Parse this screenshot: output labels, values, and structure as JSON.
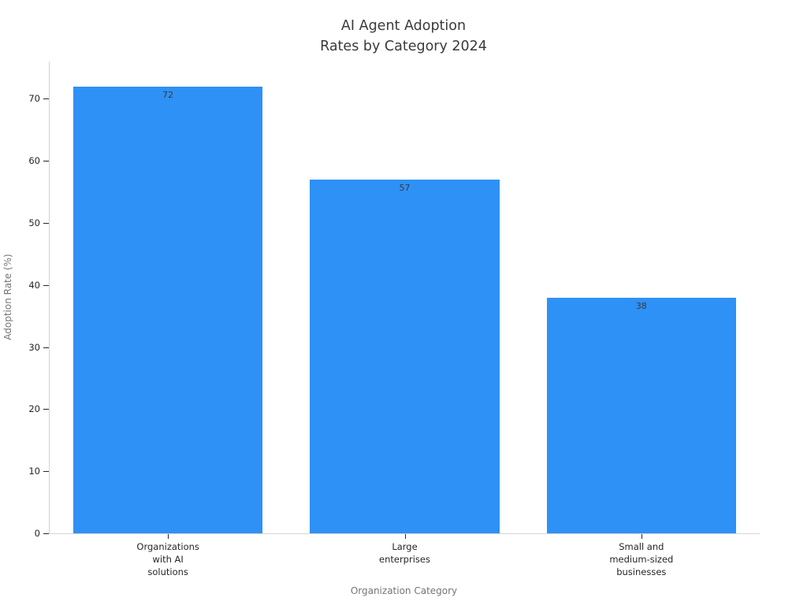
{
  "chart_data": {
    "type": "bar",
    "title": "AI Agent Adoption\nRates by Category 2024",
    "categories": [
      "Organizations\nwith AI\nsolutions",
      "Large\nenterprises",
      "Small and\nmedium-sized\nbusinesses"
    ],
    "values": [
      72,
      57,
      38
    ],
    "bar_labels": [
      "72",
      "57",
      "38"
    ],
    "xlabel": "Organization Category",
    "ylabel": "Adoption Rate (%)",
    "ylim": [
      0,
      76
    ],
    "yticks": [
      0,
      10,
      20,
      30,
      40,
      50,
      60,
      70
    ],
    "bar_width_fraction": 0.8,
    "grid": false,
    "legend_position": "none",
    "bar_color": "#2E91F6",
    "value_label_color": "#3a3a3a",
    "tick_label_color": "#262626",
    "axis_title_color": "#757575",
    "title_color": "#3a3a3a",
    "spine_color": "#d4d4d4",
    "background_color": "#ffffff"
  }
}
